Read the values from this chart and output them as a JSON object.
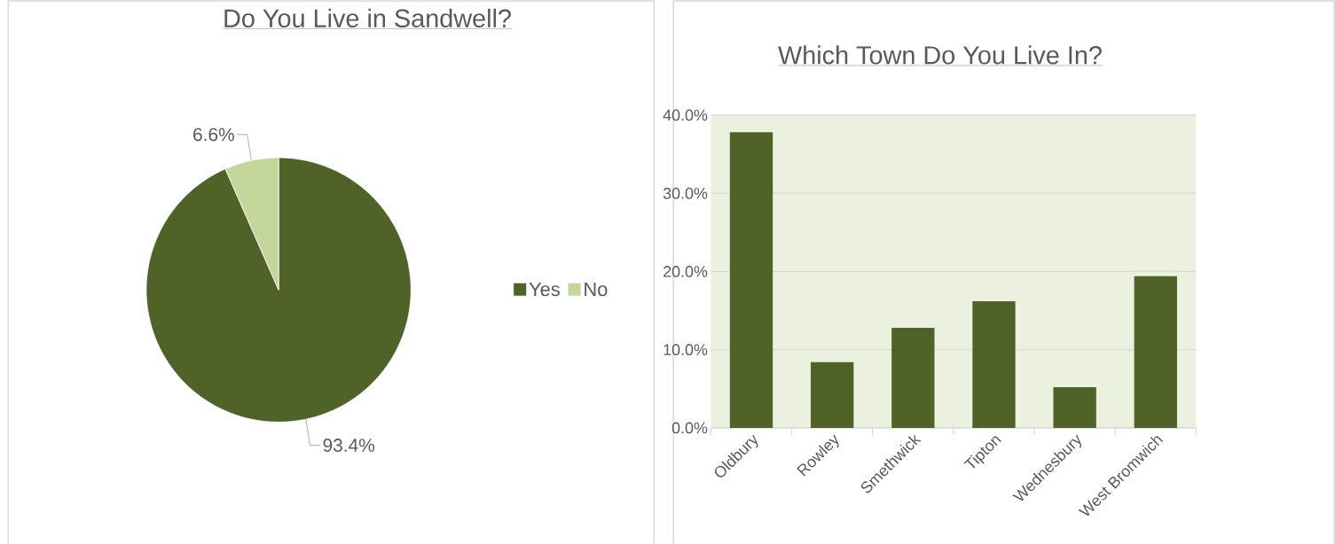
{
  "chart_data": [
    {
      "type": "pie",
      "title": "Do You Live in Sandwell?",
      "categories": [
        "Yes",
        "No"
      ],
      "values": [
        93.4,
        6.6
      ],
      "colors": [
        "#4f6228",
        "#c4d79b"
      ],
      "value_labels": [
        "93.4%",
        "6.6%"
      ],
      "legend": "right"
    },
    {
      "type": "bar",
      "title": "Which Town Do You Live In?",
      "categories": [
        "Oldbury",
        "Rowley",
        "Smethwick",
        "Tipton",
        "Wednesbury",
        "West Bromwich"
      ],
      "values": [
        37.8,
        8.4,
        12.8,
        16.2,
        5.2,
        19.4
      ],
      "color": "#4f6228",
      "ylim": [
        0,
        40
      ],
      "yticks": [
        {
          "value": 0,
          "label": "0.0%"
        },
        {
          "value": 10,
          "label": "10.0%"
        },
        {
          "value": 20,
          "label": "20.0%"
        },
        {
          "value": 30,
          "label": "30.0%"
        },
        {
          "value": 40,
          "label": "40.0%"
        }
      ],
      "grid": "y"
    }
  ]
}
